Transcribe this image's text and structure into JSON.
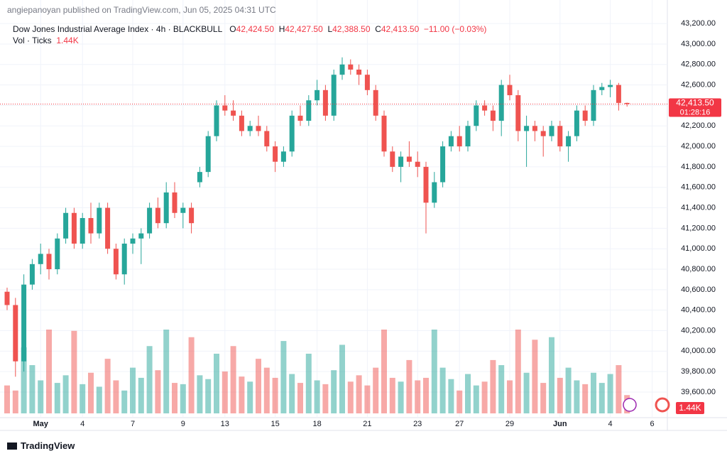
{
  "header": {
    "publisher": "angiepanoyan published on TradingView.com, Jun 05, 2025 04:31 UTC"
  },
  "footer": {
    "brand": "TradingView"
  },
  "chart_data": {
    "type": "candlestick",
    "title": "Dow Jones Industrial Average Index · 4h · BLACKBULL",
    "ohlc_legend": [
      {
        "key": "O",
        "value": 42424.5,
        "label": "42,424.50"
      },
      {
        "key": "H",
        "value": 42427.5,
        "label": "42,427.50"
      },
      {
        "key": "L",
        "value": 42388.5,
        "label": "42,388.50"
      },
      {
        "key": "C",
        "value": 42413.5,
        "label": "42,413.50"
      }
    ],
    "change": "−11.00 (−0.03%)",
    "volume_title": "Vol · Ticks",
    "last_volume": {
      "value": 1440,
      "label": "1.44K"
    },
    "last_price": {
      "value": 42413.5,
      "label": "42,413.50"
    },
    "countdown": "01:28:16",
    "up_color": "#26a69a",
    "down_color": "#ef5350",
    "grid": true,
    "categories": [
      null,
      null,
      null,
      null,
      "May",
      null,
      null,
      null,
      null,
      "4",
      null,
      null,
      null,
      null,
      null,
      "7",
      null,
      null,
      null,
      null,
      null,
      "9",
      null,
      null,
      null,
      null,
      "13",
      null,
      null,
      null,
      null,
      null,
      "15",
      null,
      null,
      null,
      null,
      "18",
      null,
      null,
      null,
      null,
      null,
      "21",
      null,
      null,
      null,
      null,
      null,
      "23",
      null,
      null,
      null,
      null,
      "27",
      null,
      null,
      null,
      null,
      null,
      "29",
      null,
      null,
      null,
      null,
      null,
      "Jun",
      null,
      null,
      null,
      null,
      null,
      "4",
      null,
      null,
      null,
      null,
      "6"
    ],
    "open": [
      40580,
      40450,
      39900,
      40650,
      40850,
      40950,
      40800,
      41100,
      41350,
      41050,
      41300,
      41150,
      41400,
      41000,
      40750,
      41050,
      41100,
      41150,
      41400,
      41250,
      41550,
      41350,
      41400,
      41650,
      41750,
      42100,
      42400,
      42350,
      42300,
      42150,
      42200,
      42150,
      42000,
      41850,
      41950,
      42300,
      42250,
      42450,
      42550,
      42300,
      42700,
      42800,
      42750,
      42700,
      42550,
      42300,
      41950,
      41800,
      41900,
      41850,
      41800,
      41450,
      41650,
      42000,
      42100,
      42000,
      42200,
      42400,
      42350,
      42250,
      42600,
      42500,
      42150,
      42200,
      42150,
      42100,
      42200,
      42000,
      42100,
      42350,
      42250,
      42550,
      42580,
      42600,
      42424.5,
      null,
      null,
      null
    ],
    "high": [
      40620,
      40520,
      40750,
      40900,
      41050,
      41000,
      41150,
      41400,
      41400,
      41350,
      41450,
      41450,
      41450,
      41050,
      41100,
      41150,
      41200,
      41450,
      41500,
      41650,
      41650,
      41450,
      41450,
      41800,
      42150,
      42450,
      42500,
      42450,
      42350,
      42250,
      42300,
      42200,
      42050,
      42000,
      42350,
      42400,
      42500,
      42650,
      42600,
      42750,
      42870,
      42850,
      42800,
      42750,
      42600,
      42350,
      42000,
      41950,
      42050,
      41950,
      41850,
      41750,
      42050,
      42150,
      42200,
      42250,
      42450,
      42450,
      42400,
      42650,
      42700,
      42550,
      42300,
      42250,
      42200,
      42250,
      42250,
      42150,
      42400,
      42400,
      42600,
      42620,
      42650,
      42620,
      42427.5,
      null,
      null,
      null
    ],
    "low": [
      40400,
      39750,
      39800,
      40600,
      40750,
      40700,
      40750,
      41050,
      41000,
      41000,
      41050,
      41100,
      40950,
      40700,
      40650,
      40950,
      40850,
      41100,
      41200,
      41200,
      41300,
      41200,
      41150,
      41600,
      41700,
      42050,
      42300,
      42250,
      42100,
      42100,
      42100,
      41950,
      41750,
      41800,
      41900,
      42200,
      42200,
      42400,
      42250,
      42250,
      42650,
      42700,
      42600,
      42500,
      42250,
      41900,
      41750,
      41650,
      41800,
      41700,
      41150,
      41400,
      41600,
      41950,
      41950,
      41950,
      42150,
      42300,
      42150,
      42100,
      42450,
      42050,
      41800,
      42050,
      41900,
      42050,
      41950,
      41850,
      42050,
      42200,
      42200,
      42500,
      42480,
      42350,
      42388.5,
      null,
      null,
      null
    ],
    "close": [
      40450,
      39900,
      40650,
      40850,
      40950,
      40800,
      41100,
      41350,
      41050,
      41300,
      41150,
      41400,
      41000,
      40750,
      41050,
      41100,
      41150,
      41400,
      41250,
      41550,
      41350,
      41400,
      41250,
      41750,
      42100,
      42400,
      42350,
      42300,
      42150,
      42200,
      42150,
      42000,
      41850,
      41950,
      42300,
      42250,
      42450,
      42550,
      42300,
      42700,
      42800,
      42750,
      42700,
      42550,
      42300,
      41950,
      41800,
      41900,
      41850,
      41800,
      41450,
      41650,
      42000,
      42100,
      42000,
      42200,
      42400,
      42350,
      42250,
      42600,
      42500,
      42150,
      42200,
      42150,
      42100,
      42200,
      42000,
      42100,
      42350,
      42250,
      42550,
      42580,
      42600,
      42424.5,
      42413.5,
      null,
      null,
      null
    ],
    "volume": [
      2200,
      1800,
      5200,
      3800,
      2600,
      6600,
      2400,
      3000,
      6500,
      2300,
      3200,
      2100,
      4300,
      2600,
      1800,
      3600,
      2800,
      5300,
      3400,
      6600,
      2400,
      2300,
      6000,
      3000,
      2700,
      4700,
      3300,
      5300,
      2900,
      2500,
      4300,
      3600,
      2800,
      5700,
      3100,
      2400,
      4700,
      2600,
      2300,
      3400,
      5400,
      2500,
      3000,
      2200,
      3600,
      6600,
      2800,
      2500,
      4200,
      2600,
      2800,
      6600,
      3600,
      2700,
      1800,
      3100,
      2200,
      2500,
      4200,
      3800,
      2600,
      6600,
      3200,
      5800,
      2400,
      6000,
      2800,
      3600,
      2600,
      2300,
      3200,
      2400,
      3100,
      3800,
      1440,
      null,
      null,
      null
    ],
    "ylim": [
      39350,
      43430
    ],
    "yticks": [
      {
        "value": 39600,
        "label": "39,600.00"
      },
      {
        "value": 39800,
        "label": "39,800.00"
      },
      {
        "value": 40000,
        "label": "40,000.00"
      },
      {
        "value": 40200,
        "label": "40,200.00"
      },
      {
        "value": 40400,
        "label": "40,400.00"
      },
      {
        "value": 40600,
        "label": "40,600.00"
      },
      {
        "value": 40800,
        "label": "40,800.00"
      },
      {
        "value": 41000,
        "label": "41,000.00"
      },
      {
        "value": 41200,
        "label": "41,200.00"
      },
      {
        "value": 41400,
        "label": "41,400.00"
      },
      {
        "value": 41600,
        "label": "41,600.00"
      },
      {
        "value": 41800,
        "label": "41,800.00"
      },
      {
        "value": 42000,
        "label": "42,000.00"
      },
      {
        "value": 42200,
        "label": "42,200.00"
      },
      {
        "value": 42400,
        "label": "42,400.00"
      },
      {
        "value": 42600,
        "label": "42,600.00"
      },
      {
        "value": 42800,
        "label": "42,800.00"
      },
      {
        "value": 43000,
        "label": "43,000.00"
      },
      {
        "value": 43200,
        "label": "43,200.00"
      }
    ]
  }
}
